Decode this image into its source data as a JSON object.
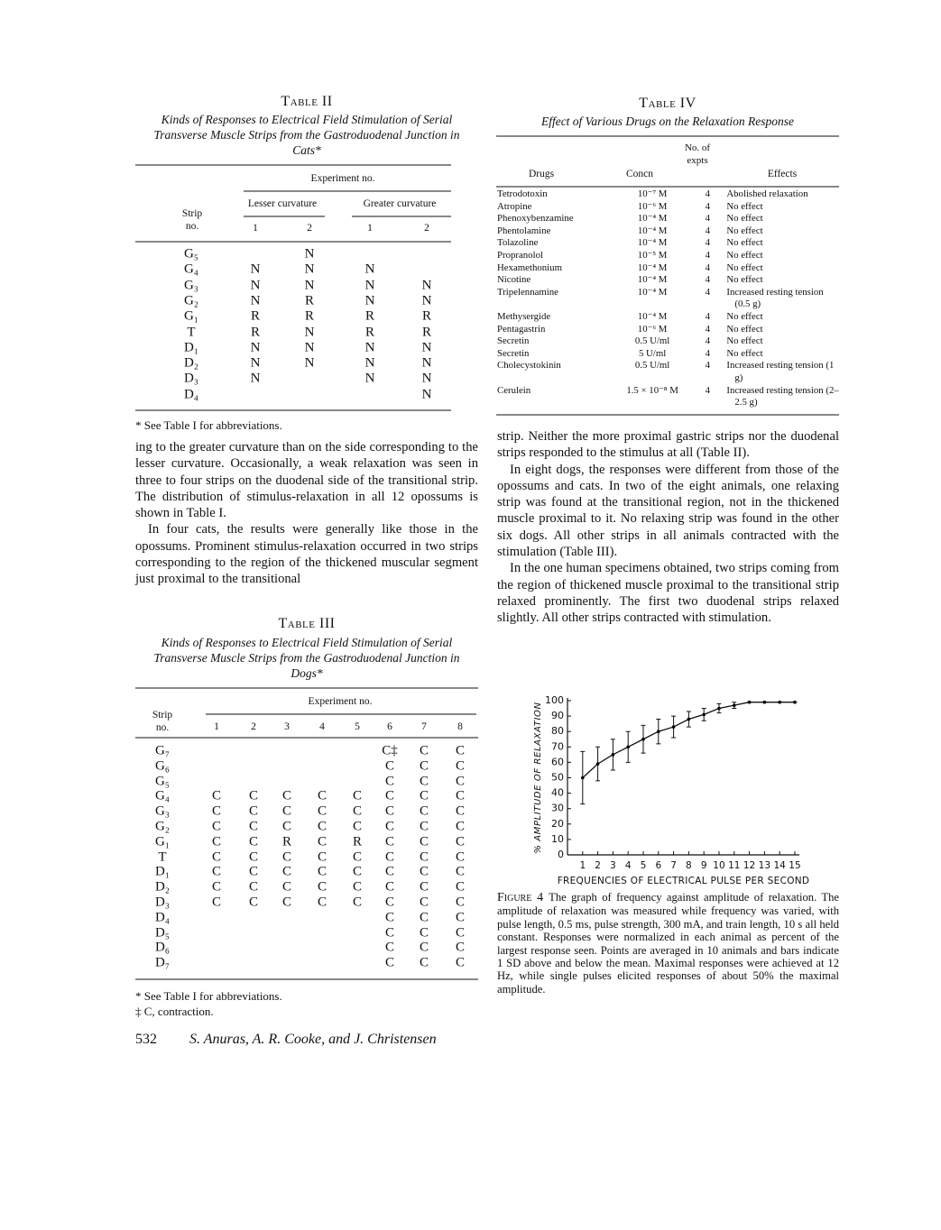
{
  "page": {
    "number": "532",
    "authors": "S. Anuras, A. R. Cooke, and J. Christensen"
  },
  "table_ii": {
    "label": "Table II",
    "caption": "Kinds of Responses to Electrical Field Stimulation of Serial Transverse Muscle Strips from the Gastroduodenal Junction in Cats*",
    "group_header": "Experiment no.",
    "subgroups": [
      "Lesser curvature",
      "Greater curvature"
    ],
    "row_header": "Strip no.",
    "columns": [
      "1",
      "2",
      "1",
      "2"
    ],
    "rows": [
      {
        "strip": "G₅",
        "cells": [
          null,
          "N",
          null,
          null
        ]
      },
      {
        "strip": "G₄",
        "cells": [
          "N",
          "N",
          "N",
          null
        ]
      },
      {
        "strip": "G₃",
        "cells": [
          "N",
          "N",
          "N",
          "N"
        ]
      },
      {
        "strip": "G₂",
        "cells": [
          "N",
          "R",
          "N",
          "N"
        ]
      },
      {
        "strip": "G₁",
        "cells": [
          "R",
          "R",
          "R",
          "R"
        ]
      },
      {
        "strip": "T",
        "cells": [
          "R",
          "N",
          "R",
          "R"
        ]
      },
      {
        "strip": "D₁",
        "cells": [
          "N",
          "N",
          "N",
          "N"
        ]
      },
      {
        "strip": "D₂",
        "cells": [
          "N",
          "N",
          "N",
          "N"
        ]
      },
      {
        "strip": "D₃",
        "cells": [
          "N",
          null,
          "N",
          "N"
        ]
      },
      {
        "strip": "D₄",
        "cells": [
          null,
          null,
          null,
          "N"
        ]
      }
    ],
    "footnotes": [
      "* See Table I for abbreviations."
    ]
  },
  "left_text": [
    "ing to the greater curvature than on the side corresponding to the lesser curvature. Occasionally, a weak relaxation was seen in three to four strips on the duodenal side of the transitional strip. The distribution of stimulus-relaxation in all 12 opossums is shown in Table I.",
    "In four cats, the results were generally like those in the opossums. Prominent stimulus-relaxation occurred in two strips corresponding to the region of the thickened muscular segment just proximal to the transitional"
  ],
  "table_iii": {
    "label": "Table III",
    "caption": "Kinds of Responses to Electrical Field Stimulation of Serial Transverse Muscle Strips from the Gastroduodenal Junction in Dogs*",
    "group_header": "Experiment no.",
    "row_header": "Strip no.",
    "columns": [
      "1",
      "2",
      "3",
      "4",
      "5",
      "6",
      "7",
      "8"
    ],
    "rows": [
      {
        "strip": "G₇",
        "cells": [
          null,
          null,
          null,
          null,
          null,
          "C‡",
          "C",
          "C"
        ]
      },
      {
        "strip": "G₆",
        "cells": [
          null,
          null,
          null,
          null,
          null,
          "C",
          "C",
          "C"
        ]
      },
      {
        "strip": "G₅",
        "cells": [
          null,
          null,
          null,
          null,
          null,
          "C",
          "C",
          "C"
        ]
      },
      {
        "strip": "G₄",
        "cells": [
          "C",
          "C",
          "C",
          "C",
          "C",
          "C",
          "C",
          "C"
        ]
      },
      {
        "strip": "G₃",
        "cells": [
          "C",
          "C",
          "C",
          "C",
          "C",
          "C",
          "C",
          "C"
        ]
      },
      {
        "strip": "G₂",
        "cells": [
          "C",
          "C",
          "C",
          "C",
          "C",
          "C",
          "C",
          "C"
        ]
      },
      {
        "strip": "G₁",
        "cells": [
          "C",
          "C",
          "R",
          "C",
          "R",
          "C",
          "C",
          "C"
        ]
      },
      {
        "strip": "T",
        "cells": [
          "C",
          "C",
          "C",
          "C",
          "C",
          "C",
          "C",
          "C"
        ]
      },
      {
        "strip": "D₁",
        "cells": [
          "C",
          "C",
          "C",
          "C",
          "C",
          "C",
          "C",
          "C"
        ]
      },
      {
        "strip": "D₂",
        "cells": [
          "C",
          "C",
          "C",
          "C",
          "C",
          "C",
          "C",
          "C"
        ]
      },
      {
        "strip": "D₃",
        "cells": [
          "C",
          "C",
          "C",
          "C",
          "C",
          "C",
          "C",
          "C"
        ]
      },
      {
        "strip": "D₄",
        "cells": [
          null,
          null,
          null,
          null,
          null,
          "C",
          "C",
          "C"
        ]
      },
      {
        "strip": "D₅",
        "cells": [
          null,
          null,
          null,
          null,
          null,
          "C",
          "C",
          "C"
        ]
      },
      {
        "strip": "D₆",
        "cells": [
          null,
          null,
          null,
          null,
          null,
          "C",
          "C",
          "C"
        ]
      },
      {
        "strip": "D₇",
        "cells": [
          null,
          null,
          null,
          null,
          null,
          "C",
          "C",
          "C"
        ]
      }
    ],
    "footnotes": [
      "* See Table I for abbreviations.",
      "‡ C, contraction."
    ]
  },
  "table_iv": {
    "label": "Table IV",
    "caption": "Effect of Various Drugs on the Relaxation Response",
    "columns": [
      "Drugs",
      "Concn",
      "No. of expts",
      "Effects"
    ],
    "rows": [
      [
        "Tetrodotoxin",
        "10⁻⁷ M",
        "4",
        "Abolished relaxation"
      ],
      [
        "Atropine",
        "10⁻⁶ M",
        "4",
        "No effect"
      ],
      [
        "Phenoxybenzamine",
        "10⁻⁴ M",
        "4",
        "No effect"
      ],
      [
        "Phentolamine",
        "10⁻⁴ M",
        "4",
        "No effect"
      ],
      [
        "Tolazoline",
        "10⁻⁴ M",
        "4",
        "No effect"
      ],
      [
        "Propranolol",
        "10⁻⁵ M",
        "4",
        "No effect"
      ],
      [
        "Hexamethonium",
        "10⁻⁴ M",
        "4",
        "No effect"
      ],
      [
        "Nicotine",
        "10⁻⁴ M",
        "4",
        "No effect"
      ],
      [
        "Tripelennamine",
        "10⁻⁴ M",
        "4",
        "Increased resting tension (0.5 g)"
      ],
      [
        "Methysergide",
        "10⁻⁴ M",
        "4",
        "No effect"
      ],
      [
        "Pentagastrin",
        "10⁻⁶ M",
        "4",
        "No effect"
      ],
      [
        "Secretin",
        "0.5 U/ml",
        "4",
        "No effect"
      ],
      [
        "Secretin",
        "5 U/ml",
        "4",
        "No effect"
      ],
      [
        "Cholecystokinin",
        "0.5 U/ml",
        "4",
        "Increased resting tension (1 g)"
      ],
      [
        "Cerulein",
        "1.5 × 10⁻⁸ M",
        "4",
        "Increased resting tension (2–2.5 g)"
      ]
    ]
  },
  "right_text": [
    "strip. Neither the more proximal gastric strips nor the duodenal strips responded to the stimulus at all (Table II).",
    "In eight dogs, the responses were different from those of the opossums and cats. In two of the eight animals, one relaxing strip was found at the transitional region, not in the thickened muscle proximal to it. No relaxing strip was found in the other six dogs. All other strips in all animals contracted with the stimulation (Table III).",
    "In the one human specimens obtained, two strips coming from the region of thickened muscle proximal to the transitional strip relaxed prominently. The first two duodenal strips relaxed slightly. All other strips contracted with stimulation."
  ],
  "figure": {
    "label": "Figure 4",
    "caption": "The graph of frequency against amplitude of relaxation. The amplitude of relaxation was measured while frequency was varied, with pulse length, 0.5 ms, pulse strength, 300 mA, and train length, 10 s all held constant. Responses were normalized in each animal as percent of the largest response seen. Points are averaged in 10 animals and bars indicate 1 SD above and below the mean. Maximal responses were achieved at 12 Hz, while single pulses elicited responses of about 50% the maximal amplitude."
  },
  "chart_data": {
    "type": "line",
    "x_label": "FREQUENCIES OF ELECTRICAL PULSE PER SECOND",
    "y_label": "% AMPLITUDE OF RELAXATION",
    "x": [
      1,
      2,
      3,
      4,
      5,
      6,
      7,
      8,
      9,
      10,
      11,
      12,
      13,
      14,
      15
    ],
    "series": [
      {
        "color": "#000000",
        "values": [
          50,
          59,
          65,
          70,
          75,
          80,
          83,
          88,
          91,
          95,
          97,
          99,
          99,
          99,
          99
        ],
        "errors": [
          17,
          11,
          10,
          10,
          9,
          8,
          7,
          5,
          4,
          3,
          2,
          0,
          0,
          0,
          0
        ]
      }
    ],
    "xlim": [
      0,
      15.3
    ],
    "ylim": [
      0,
      100
    ],
    "xticks": [
      1,
      2,
      3,
      4,
      5,
      6,
      7,
      8,
      9,
      10,
      11,
      12,
      13,
      14,
      15
    ],
    "yticks": [
      0,
      10,
      20,
      30,
      40,
      50,
      60,
      70,
      80,
      90,
      100
    ]
  }
}
